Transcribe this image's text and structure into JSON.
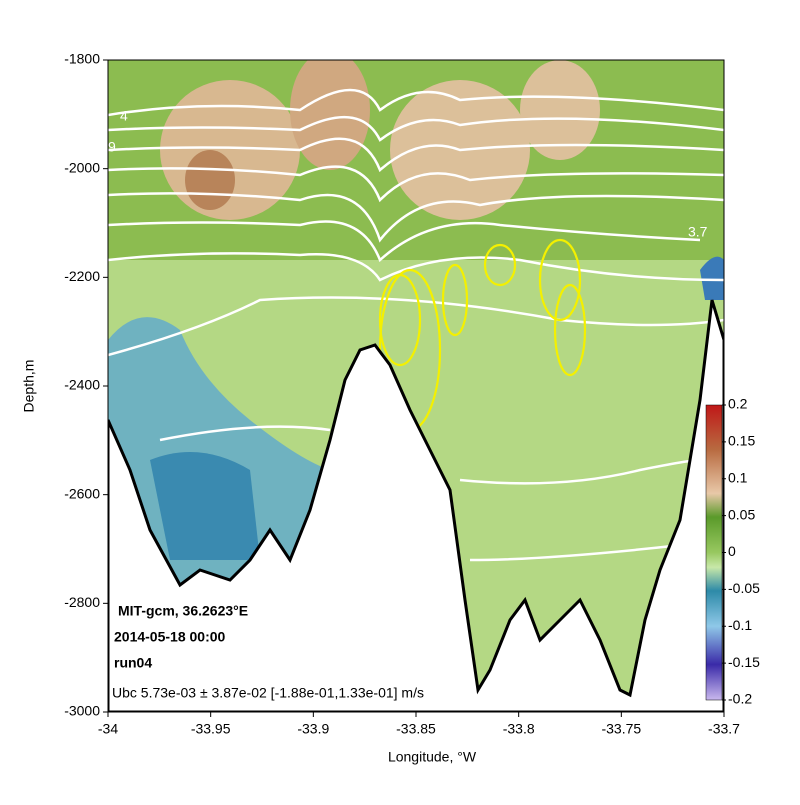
{
  "chart_data": {
    "type": "contour",
    "xlabel": "Longitude, °W",
    "ylabel": "Depth,m",
    "xlim": [
      -34,
      -33.7
    ],
    "xticks": [
      -34,
      -33.95,
      -33.9,
      -33.85,
      -33.8,
      -33.75,
      -33.7
    ],
    "ylim": [
      -3000,
      -1800
    ],
    "yticks": [
      -1800,
      -2000,
      -2200,
      -2400,
      -2600,
      -2800,
      -3000
    ],
    "clim": [
      -0.2,
      0.2
    ],
    "cticks": [
      0.2,
      0.15,
      0.1,
      0.05,
      0,
      -0.05,
      -0.1,
      -0.15,
      -0.2
    ],
    "contour_labels": [
      "4",
      "9",
      "3.7"
    ],
    "annotations": [
      "MIT-gcm, 36.2623°E",
      "2014-05-18 00:00",
      "run04"
    ],
    "footnote": "Ubc 5.73e-03 ± 3.87e-02 [-1.88e-01,1.33e-01] m/s"
  }
}
